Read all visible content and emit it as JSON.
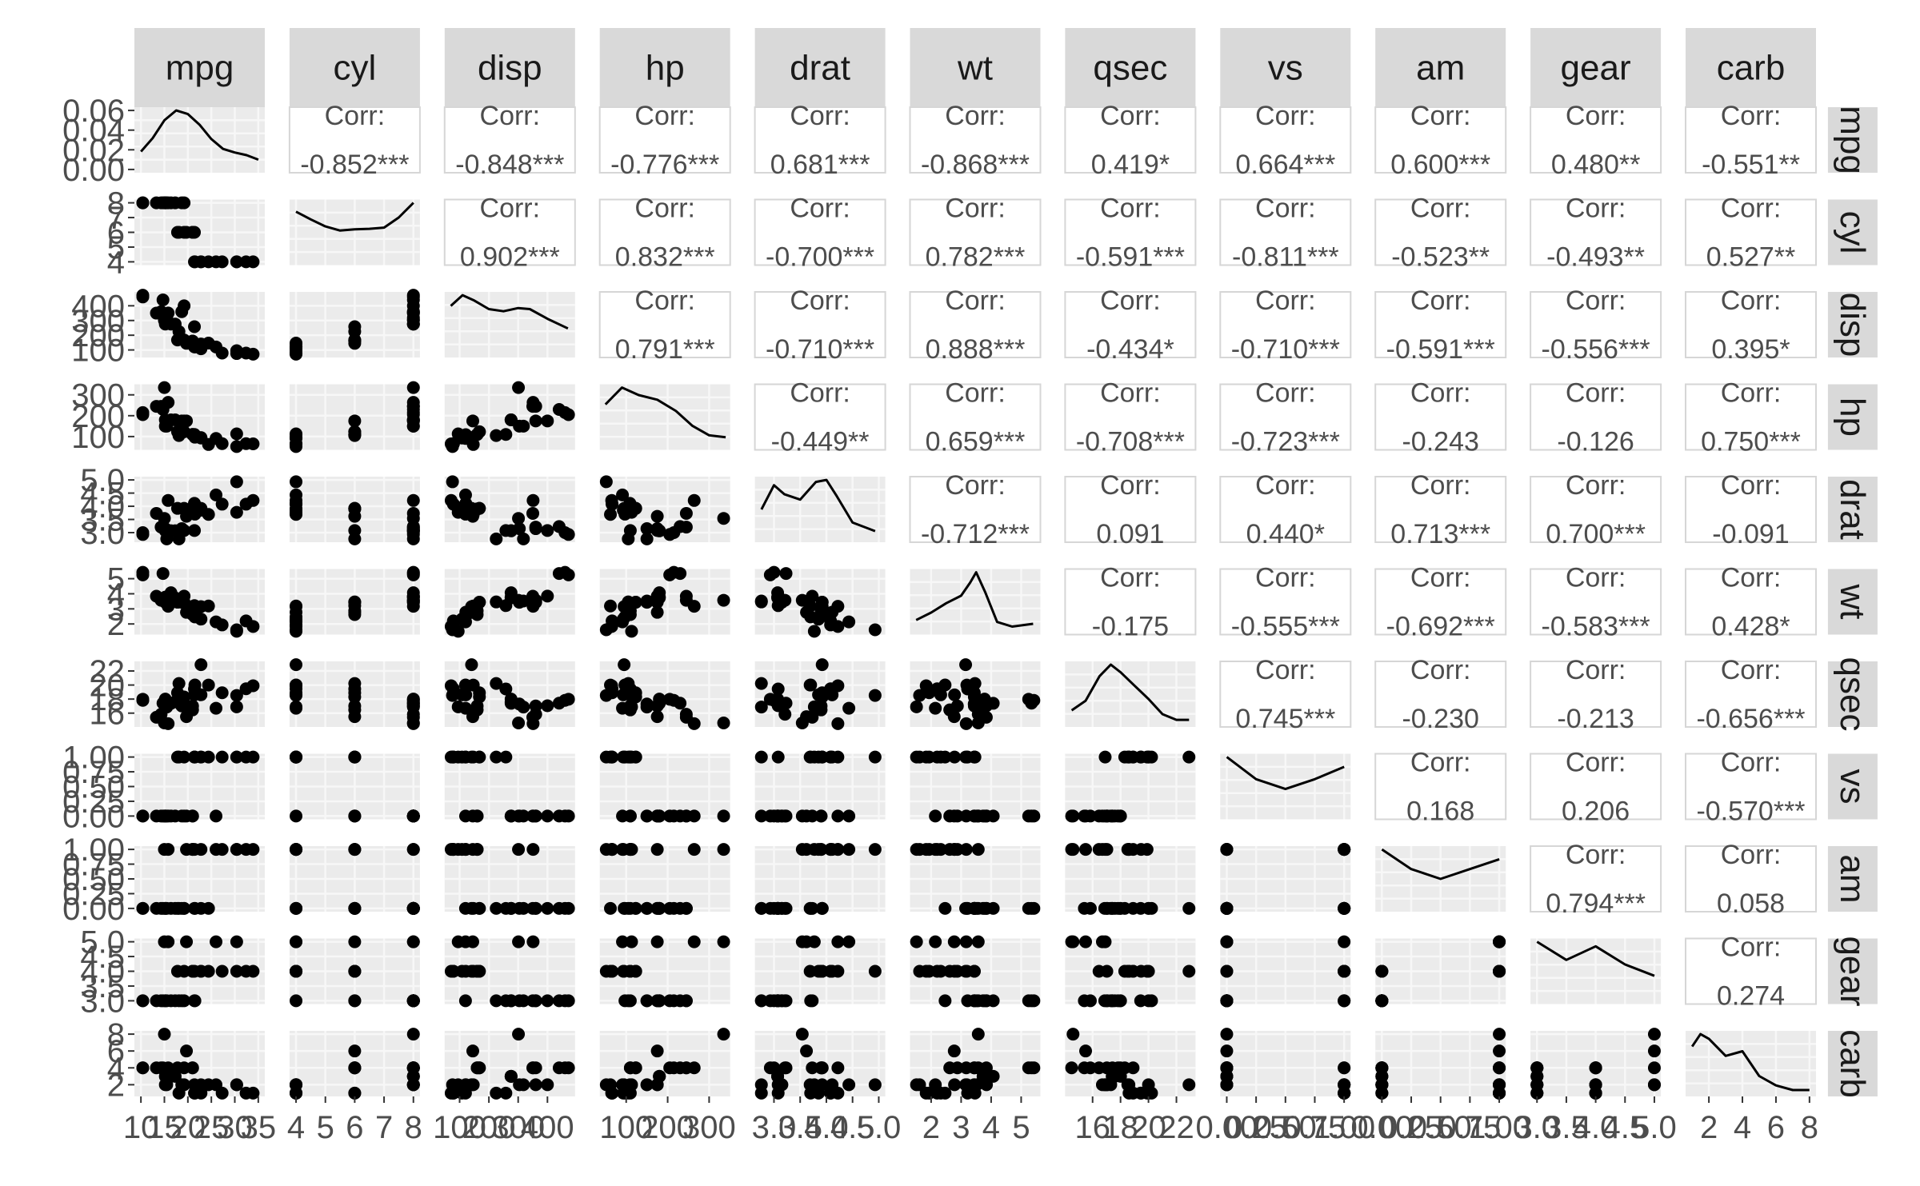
{
  "chart_data": {
    "type": "scatter-matrix",
    "variables": [
      "mpg",
      "cyl",
      "disp",
      "hp",
      "drat",
      "wt",
      "qsec",
      "vs",
      "am",
      "gear",
      "carb"
    ],
    "y_ticks": [
      [
        "0.00",
        "0.02",
        "0.04",
        "0.06"
      ],
      [
        "4",
        "5",
        "6",
        "7",
        "8"
      ],
      [
        "100",
        "200",
        "300",
        "400"
      ],
      [
        "100",
        "200",
        "300"
      ],
      [
        "3.0",
        "3.5",
        "4.0",
        "4.5",
        "5.0"
      ],
      [
        "2",
        "3",
        "4",
        "5"
      ],
      [
        "16",
        "18",
        "20",
        "22"
      ],
      [
        "0.00",
        "0.25",
        "0.50",
        "0.75",
        "1.00"
      ],
      [
        "0.00",
        "0.25",
        "0.50",
        "0.75",
        "1.00"
      ],
      [
        "3.0",
        "3.5",
        "4.0",
        "4.5",
        "5.0"
      ],
      [
        "2",
        "4",
        "6",
        "8"
      ]
    ],
    "x_ticks": [
      [
        "10",
        "15",
        "20",
        "25",
        "30",
        "35"
      ],
      [
        "4",
        "5",
        "6",
        "7",
        "8"
      ],
      [
        "100",
        "200",
        "300",
        "400"
      ],
      [
        "100",
        "200",
        "300"
      ],
      [
        "3.0",
        "3.5",
        "4.0",
        "4.5",
        "5.0"
      ],
      [
        "2",
        "3",
        "4",
        "5"
      ],
      [
        "16",
        "18",
        "20",
        "22"
      ],
      [
        "0.00",
        "0.25",
        "0.50",
        "0.75",
        "1.00"
      ],
      [
        "0.00",
        "0.25",
        "0.50",
        "0.75",
        "1.00"
      ],
      [
        "3.0",
        "3.5",
        "4.0",
        "4.5",
        "5.0"
      ],
      [
        "2",
        "4",
        "6",
        "8"
      ]
    ],
    "correlations": [
      {
        "row": 0,
        "col": 1,
        "label": "Corr:",
        "value": "-0.852***"
      },
      {
        "row": 0,
        "col": 2,
        "label": "Corr:",
        "value": "-0.848***"
      },
      {
        "row": 0,
        "col": 3,
        "label": "Corr:",
        "value": "-0.776***"
      },
      {
        "row": 0,
        "col": 4,
        "label": "Corr:",
        "value": "0.681***"
      },
      {
        "row": 0,
        "col": 5,
        "label": "Corr:",
        "value": "-0.868***"
      },
      {
        "row": 0,
        "col": 6,
        "label": "Corr:",
        "value": "0.419*"
      },
      {
        "row": 0,
        "col": 7,
        "label": "Corr:",
        "value": "0.664***"
      },
      {
        "row": 0,
        "col": 8,
        "label": "Corr:",
        "value": "0.600***"
      },
      {
        "row": 0,
        "col": 9,
        "label": "Corr:",
        "value": "0.480**"
      },
      {
        "row": 0,
        "col": 10,
        "label": "Corr:",
        "value": "-0.551**"
      },
      {
        "row": 1,
        "col": 2,
        "label": "Corr:",
        "value": "0.902***"
      },
      {
        "row": 1,
        "col": 3,
        "label": "Corr:",
        "value": "0.832***"
      },
      {
        "row": 1,
        "col": 4,
        "label": "Corr:",
        "value": "-0.700***"
      },
      {
        "row": 1,
        "col": 5,
        "label": "Corr:",
        "value": "0.782***"
      },
      {
        "row": 1,
        "col": 6,
        "label": "Corr:",
        "value": "-0.591***"
      },
      {
        "row": 1,
        "col": 7,
        "label": "Corr:",
        "value": "-0.811***"
      },
      {
        "row": 1,
        "col": 8,
        "label": "Corr:",
        "value": "-0.523**"
      },
      {
        "row": 1,
        "col": 9,
        "label": "Corr:",
        "value": "-0.493**"
      },
      {
        "row": 1,
        "col": 10,
        "label": "Corr:",
        "value": "0.527**"
      },
      {
        "row": 2,
        "col": 3,
        "label": "Corr:",
        "value": "0.791***"
      },
      {
        "row": 2,
        "col": 4,
        "label": "Corr:",
        "value": "-0.710***"
      },
      {
        "row": 2,
        "col": 5,
        "label": "Corr:",
        "value": "0.888***"
      },
      {
        "row": 2,
        "col": 6,
        "label": "Corr:",
        "value": "-0.434*"
      },
      {
        "row": 2,
        "col": 7,
        "label": "Corr:",
        "value": "-0.710***"
      },
      {
        "row": 2,
        "col": 8,
        "label": "Corr:",
        "value": "-0.591***"
      },
      {
        "row": 2,
        "col": 9,
        "label": "Corr:",
        "value": "-0.556***"
      },
      {
        "row": 2,
        "col": 10,
        "label": "Corr:",
        "value": "0.395*"
      },
      {
        "row": 3,
        "col": 4,
        "label": "Corr:",
        "value": "-0.449**"
      },
      {
        "row": 3,
        "col": 5,
        "label": "Corr:",
        "value": "0.659***"
      },
      {
        "row": 3,
        "col": 6,
        "label": "Corr:",
        "value": "-0.708***"
      },
      {
        "row": 3,
        "col": 7,
        "label": "Corr:",
        "value": "-0.723***"
      },
      {
        "row": 3,
        "col": 8,
        "label": "Corr:",
        "value": "-0.243"
      },
      {
        "row": 3,
        "col": 9,
        "label": "Corr:",
        "value": "-0.126"
      },
      {
        "row": 3,
        "col": 10,
        "label": "Corr:",
        "value": "0.750***"
      },
      {
        "row": 4,
        "col": 5,
        "label": "Corr:",
        "value": "-0.712***"
      },
      {
        "row": 4,
        "col": 6,
        "label": "Corr:",
        "value": "0.091"
      },
      {
        "row": 4,
        "col": 7,
        "label": "Corr:",
        "value": "0.440*"
      },
      {
        "row": 4,
        "col": 8,
        "label": "Corr:",
        "value": "0.713***"
      },
      {
        "row": 4,
        "col": 9,
        "label": "Corr:",
        "value": "0.700***"
      },
      {
        "row": 4,
        "col": 10,
        "label": "Corr:",
        "value": "-0.091"
      },
      {
        "row": 5,
        "col": 6,
        "label": "Corr:",
        "value": "-0.175"
      },
      {
        "row": 5,
        "col": 7,
        "label": "Corr:",
        "value": "-0.555***"
      },
      {
        "row": 5,
        "col": 8,
        "label": "Corr:",
        "value": "-0.692***"
      },
      {
        "row": 5,
        "col": 9,
        "label": "Corr:",
        "value": "-0.583***"
      },
      {
        "row": 5,
        "col": 10,
        "label": "Corr:",
        "value": "0.428*"
      },
      {
        "row": 6,
        "col": 7,
        "label": "Corr:",
        "value": "0.745***"
      },
      {
        "row": 6,
        "col": 8,
        "label": "Corr:",
        "value": "-0.230"
      },
      {
        "row": 6,
        "col": 9,
        "label": "Corr:",
        "value": "-0.213"
      },
      {
        "row": 6,
        "col": 10,
        "label": "Corr:",
        "value": "-0.656***"
      },
      {
        "row": 7,
        "col": 8,
        "label": "Corr:",
        "value": "0.168"
      },
      {
        "row": 7,
        "col": 9,
        "label": "Corr:",
        "value": "0.206"
      },
      {
        "row": 7,
        "col": 10,
        "label": "Corr:",
        "value": "-0.570***"
      },
      {
        "row": 8,
        "col": 9,
        "label": "Corr:",
        "value": "0.794***"
      },
      {
        "row": 8,
        "col": 10,
        "label": "Corr:",
        "value": "0.058"
      },
      {
        "row": 9,
        "col": 10,
        "label": "Corr:",
        "value": "0.274"
      }
    ],
    "data": {
      "mpg": [
        21,
        21,
        22.8,
        21.4,
        18.7,
        18.1,
        14.3,
        24.4,
        22.8,
        19.2,
        17.8,
        16.4,
        17.3,
        15.2,
        10.4,
        10.4,
        14.7,
        32.4,
        30.4,
        33.9,
        21.5,
        15.5,
        15.2,
        13.3,
        19.2,
        27.3,
        26,
        30.4,
        15.8,
        19.7,
        15,
        21.4
      ],
      "cyl": [
        6,
        6,
        4,
        6,
        8,
        6,
        8,
        4,
        4,
        6,
        6,
        8,
        8,
        8,
        8,
        8,
        8,
        4,
        4,
        4,
        4,
        8,
        8,
        8,
        8,
        4,
        4,
        4,
        8,
        6,
        8,
        4
      ],
      "disp": [
        160,
        160,
        108,
        258,
        360,
        225,
        360,
        146.7,
        140.8,
        167.6,
        167.6,
        275.8,
        275.8,
        275.8,
        472,
        460,
        440,
        78.7,
        75.7,
        71.1,
        120.1,
        318,
        304,
        350,
        400,
        79,
        120.3,
        95.1,
        351,
        145,
        301,
        121
      ],
      "hp": [
        110,
        110,
        93,
        110,
        175,
        105,
        245,
        62,
        95,
        123,
        123,
        180,
        180,
        180,
        205,
        215,
        230,
        66,
        52,
        65,
        97,
        150,
        150,
        245,
        175,
        66,
        91,
        113,
        264,
        175,
        335,
        109
      ],
      "drat": [
        3.9,
        3.9,
        3.85,
        3.08,
        3.15,
        2.76,
        3.21,
        3.69,
        3.92,
        3.92,
        3.92,
        3.07,
        3.07,
        3.07,
        2.93,
        3,
        3.23,
        4.08,
        4.93,
        4.22,
        3.7,
        2.76,
        3.15,
        3.73,
        3.08,
        4.08,
        4.43,
        3.77,
        4.22,
        3.62,
        3.54,
        4.11
      ],
      "wt": [
        2.62,
        2.875,
        2.32,
        3.215,
        3.44,
        3.46,
        3.57,
        3.19,
        3.15,
        3.44,
        3.44,
        4.07,
        3.73,
        3.78,
        5.25,
        5.424,
        5.345,
        2.2,
        1.615,
        1.835,
        2.465,
        3.52,
        3.435,
        3.84,
        3.845,
        1.935,
        2.14,
        1.513,
        3.17,
        2.77,
        3.57,
        2.78
      ],
      "qsec": [
        16.46,
        17.02,
        18.61,
        19.44,
        17.02,
        20.22,
        15.84,
        20,
        22.9,
        18.3,
        18.9,
        17.4,
        17.6,
        18,
        17.98,
        17.82,
        17.42,
        19.47,
        18.52,
        19.9,
        20.01,
        16.87,
        17.3,
        15.41,
        17.05,
        18.9,
        16.7,
        16.9,
        14.5,
        15.5,
        14.6,
        18.6
      ],
      "vs": [
        0,
        0,
        1,
        1,
        0,
        1,
        0,
        1,
        1,
        1,
        1,
        0,
        0,
        0,
        0,
        0,
        0,
        1,
        1,
        1,
        1,
        0,
        0,
        0,
        0,
        1,
        0,
        1,
        0,
        0,
        0,
        1
      ],
      "am": [
        1,
        1,
        1,
        0,
        0,
        0,
        0,
        0,
        0,
        0,
        0,
        0,
        0,
        0,
        0,
        0,
        0,
        1,
        1,
        1,
        0,
        0,
        0,
        0,
        0,
        1,
        1,
        1,
        1,
        1,
        1,
        1
      ],
      "gear": [
        4,
        4,
        4,
        3,
        3,
        3,
        3,
        4,
        4,
        4,
        4,
        3,
        3,
        3,
        3,
        3,
        3,
        4,
        4,
        4,
        3,
        3,
        3,
        3,
        3,
        4,
        5,
        5,
        5,
        5,
        5,
        4
      ],
      "carb": [
        4,
        4,
        1,
        1,
        2,
        1,
        4,
        2,
        2,
        4,
        4,
        3,
        3,
        3,
        4,
        4,
        4,
        1,
        2,
        1,
        1,
        2,
        2,
        4,
        2,
        1,
        2,
        2,
        4,
        6,
        8,
        2
      ]
    },
    "density_curves": {
      "mpg": [
        [
          10,
          0.02
        ],
        [
          12.5,
          0.035
        ],
        [
          15,
          0.055
        ],
        [
          17.5,
          0.066
        ],
        [
          20,
          0.062
        ],
        [
          22.5,
          0.05
        ],
        [
          25,
          0.034
        ],
        [
          27.5,
          0.023
        ],
        [
          30,
          0.019
        ],
        [
          32.5,
          0.016
        ],
        [
          35,
          0.011
        ]
      ],
      "cyl": [
        [
          4,
          0.85
        ],
        [
          4.5,
          0.72
        ],
        [
          5,
          0.6
        ],
        [
          5.5,
          0.53
        ],
        [
          6,
          0.55
        ],
        [
          6.5,
          0.56
        ],
        [
          7,
          0.58
        ],
        [
          7.5,
          0.75
        ],
        [
          8,
          1.0
        ]
      ],
      "disp": [
        [
          70,
          0.0045
        ],
        [
          110,
          0.0055
        ],
        [
          150,
          0.005
        ],
        [
          200,
          0.0042
        ],
        [
          250,
          0.004
        ],
        [
          300,
          0.0043
        ],
        [
          340,
          0.0042
        ],
        [
          400,
          0.0033
        ],
        [
          470,
          0.0024
        ]
      ],
      "hp": [
        [
          50,
          0.0045
        ],
        [
          90,
          0.0063
        ],
        [
          130,
          0.0055
        ],
        [
          175,
          0.005
        ],
        [
          220,
          0.0038
        ],
        [
          260,
          0.0022
        ],
        [
          300,
          0.0012
        ],
        [
          340,
          0.001
        ]
      ],
      "drat": [
        [
          2.76,
          0.45
        ],
        [
          3.0,
          0.82
        ],
        [
          3.2,
          0.68
        ],
        [
          3.5,
          0.6
        ],
        [
          3.8,
          0.87
        ],
        [
          4.0,
          0.9
        ],
        [
          4.2,
          0.65
        ],
        [
          4.5,
          0.25
        ],
        [
          4.93,
          0.12
        ]
      ],
      "wt": [
        [
          1.5,
          0.12
        ],
        [
          2,
          0.2
        ],
        [
          2.5,
          0.3
        ],
        [
          3,
          0.38
        ],
        [
          3.3,
          0.52
        ],
        [
          3.5,
          0.63
        ],
        [
          3.8,
          0.42
        ],
        [
          4.2,
          0.1
        ],
        [
          4.7,
          0.05
        ],
        [
          5.4,
          0.08
        ]
      ],
      "qsec": [
        [
          14.5,
          0.07
        ],
        [
          15.5,
          0.12
        ],
        [
          16.5,
          0.25
        ],
        [
          17.3,
          0.31
        ],
        [
          18,
          0.27
        ],
        [
          19,
          0.2
        ],
        [
          20,
          0.13
        ],
        [
          21,
          0.05
        ],
        [
          22,
          0.02
        ],
        [
          22.9,
          0.02
        ]
      ],
      "vs": [
        [
          0,
          1.2
        ],
        [
          0.25,
          0.75
        ],
        [
          0.5,
          0.55
        ],
        [
          0.75,
          0.75
        ],
        [
          1,
          1.0
        ]
      ],
      "am": [
        [
          0,
          1.2
        ],
        [
          0.25,
          0.8
        ],
        [
          0.5,
          0.6
        ],
        [
          0.75,
          0.8
        ],
        [
          1,
          1.0
        ]
      ],
      "gear": [
        [
          3,
          1.3
        ],
        [
          3.5,
          0.9
        ],
        [
          4,
          1.2
        ],
        [
          4.5,
          0.8
        ],
        [
          5,
          0.55
        ]
      ],
      "carb": [
        [
          1,
          0.3
        ],
        [
          1.5,
          0.38
        ],
        [
          2,
          0.35
        ],
        [
          3,
          0.24
        ],
        [
          4,
          0.27
        ],
        [
          5,
          0.11
        ],
        [
          6,
          0.05
        ],
        [
          7,
          0.02
        ],
        [
          8,
          0.02
        ]
      ]
    }
  }
}
